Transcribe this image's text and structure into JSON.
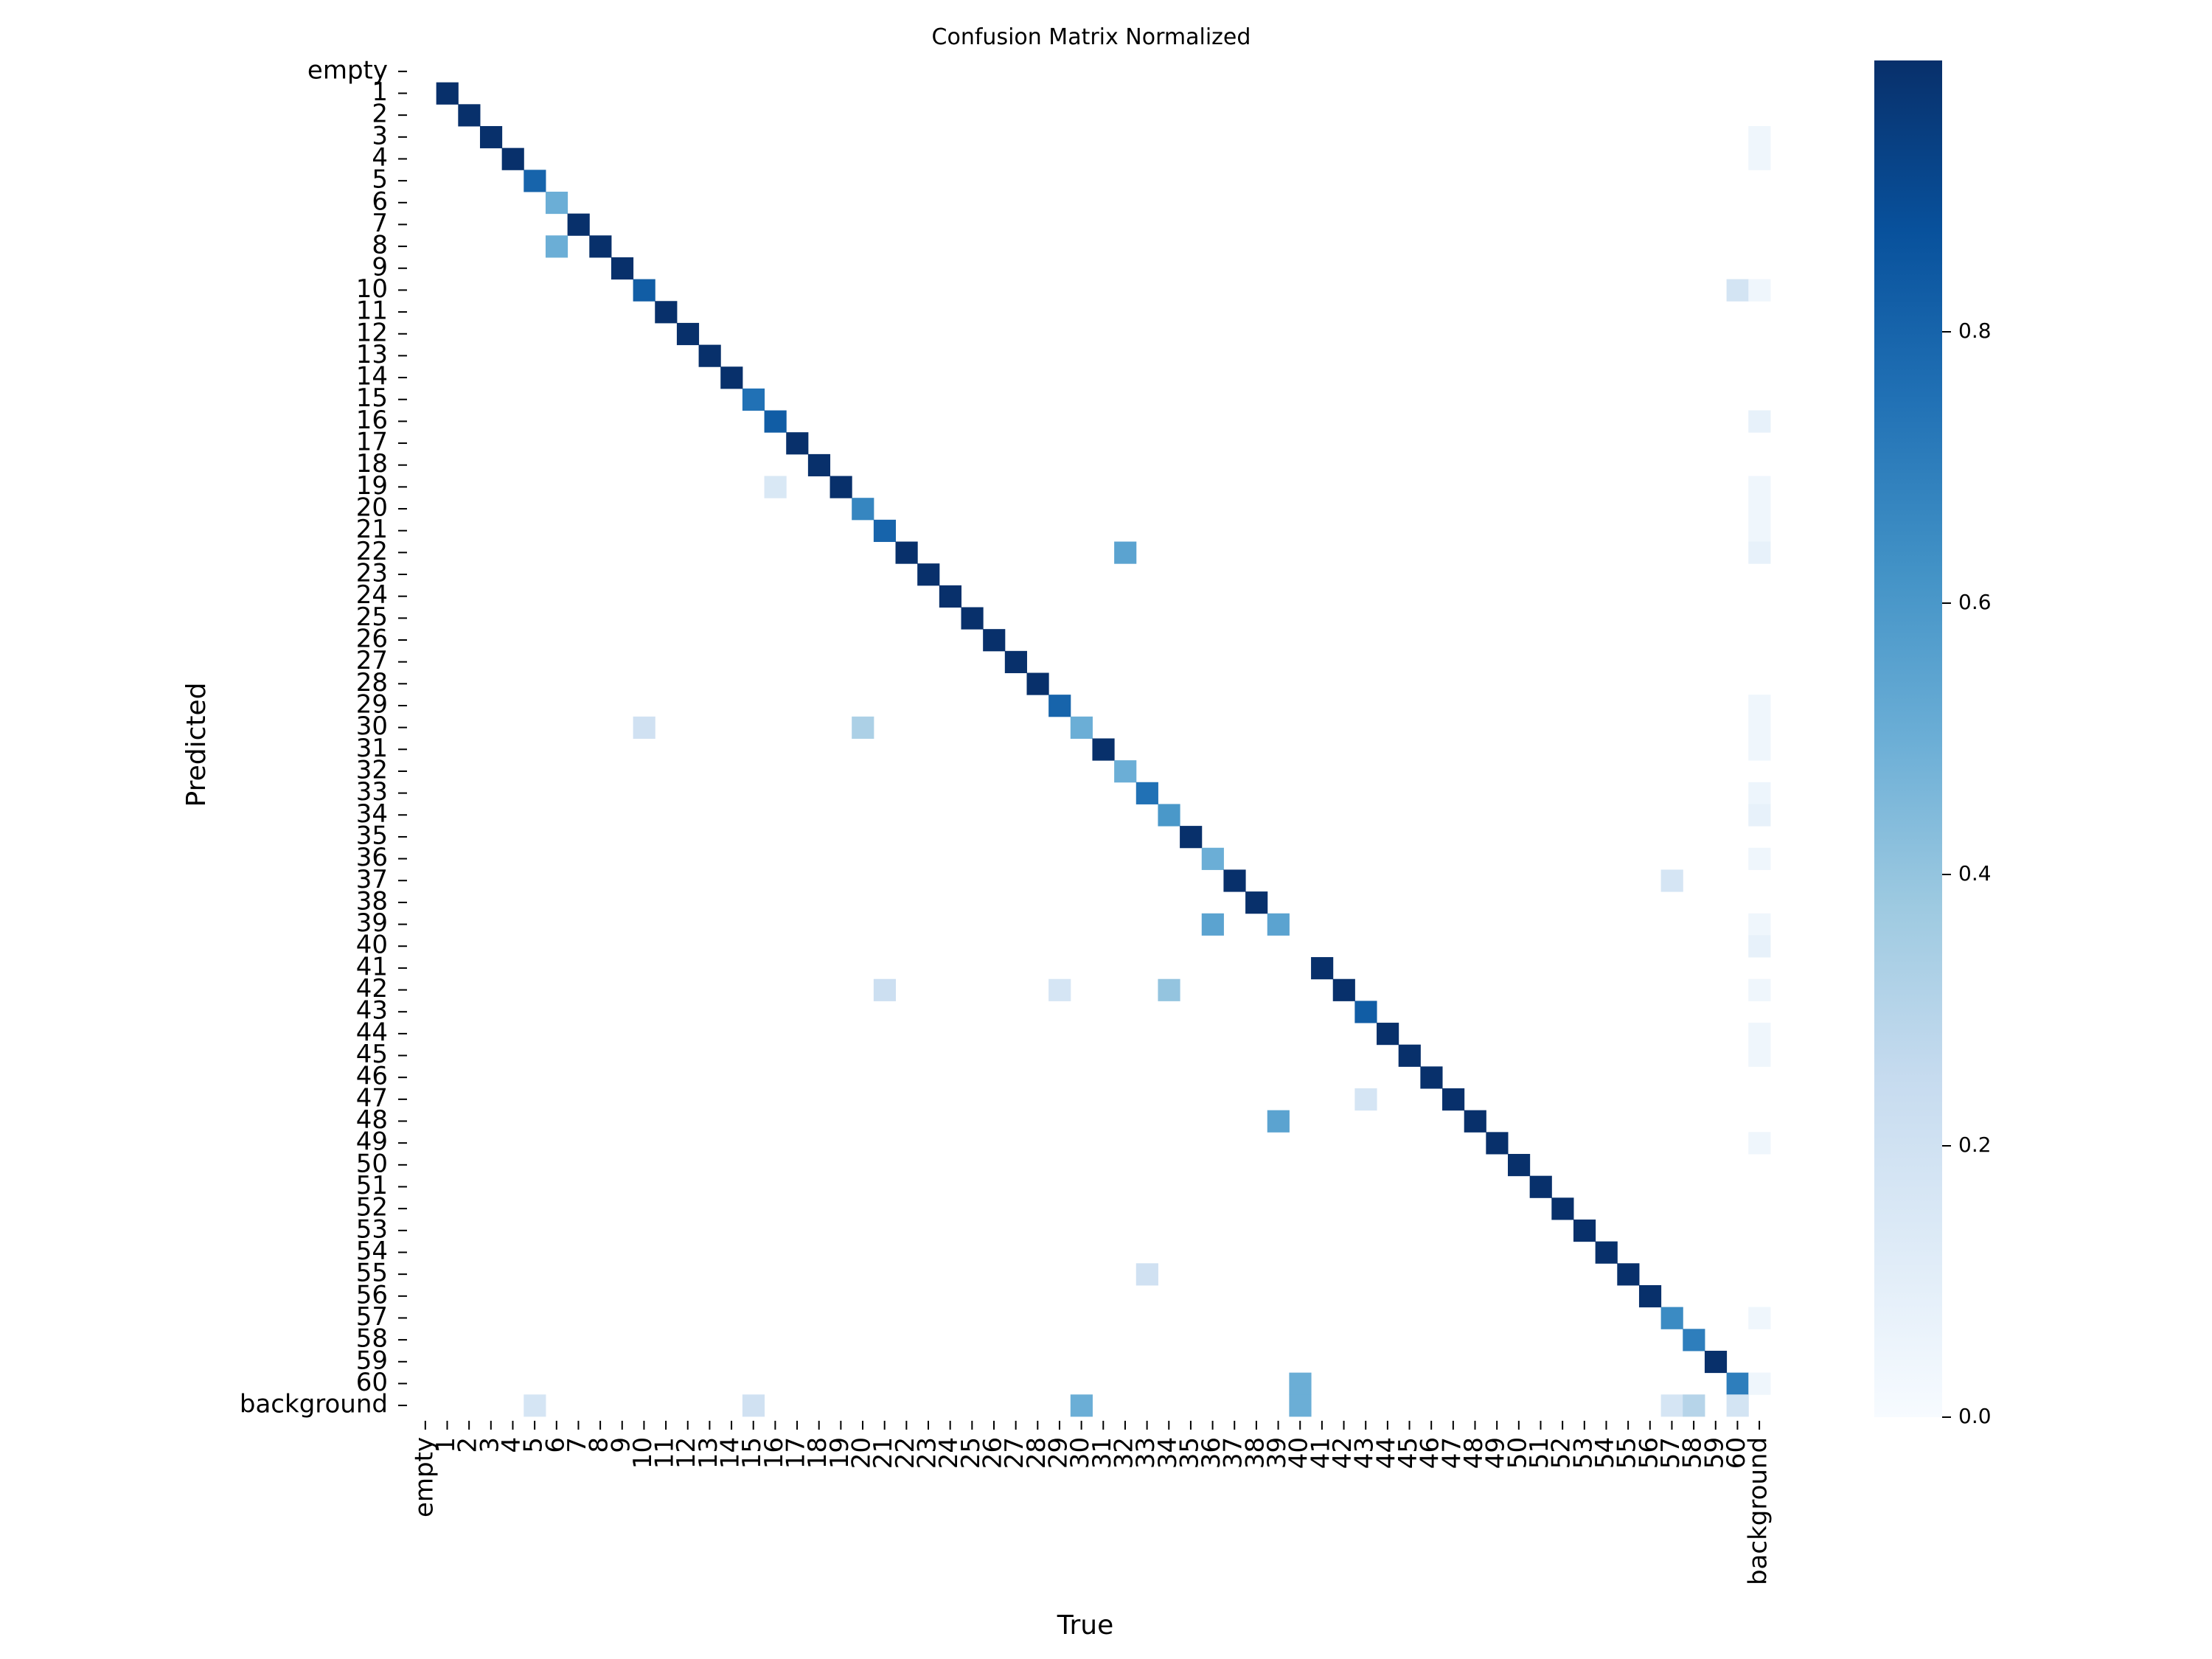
{
  "chart_data": {
    "type": "heatmap",
    "title": "Confusion Matrix Normalized",
    "xlabel": "True",
    "ylabel": "Predicted",
    "labels": [
      "empty",
      "1",
      "2",
      "3",
      "4",
      "5",
      "6",
      "7",
      "8",
      "9",
      "10",
      "11",
      "12",
      "13",
      "14",
      "15",
      "16",
      "17",
      "18",
      "19",
      "20",
      "21",
      "22",
      "23",
      "24",
      "25",
      "26",
      "27",
      "28",
      "29",
      "30",
      "31",
      "32",
      "33",
      "34",
      "35",
      "36",
      "37",
      "38",
      "39",
      "40",
      "41",
      "42",
      "43",
      "44",
      "45",
      "46",
      "47",
      "48",
      "49",
      "50",
      "51",
      "52",
      "53",
      "54",
      "55",
      "56",
      "57",
      "58",
      "59",
      "60",
      "background"
    ],
    "colormap": "Blues",
    "colorbar": {
      "min": 0.0,
      "max": 1.0,
      "ticks": [
        0.0,
        0.2,
        0.4,
        0.6,
        0.8
      ],
      "tick_labels": [
        "0.0",
        "0.2",
        "0.4",
        "0.6",
        "0.8"
      ]
    },
    "cells": [
      {
        "pred": "1",
        "true": "1",
        "value": 1.0
      },
      {
        "pred": "2",
        "true": "2",
        "value": 1.0
      },
      {
        "pred": "3",
        "true": "3",
        "value": 1.0
      },
      {
        "pred": "3",
        "true": "background",
        "value": 0.04
      },
      {
        "pred": "4",
        "true": "4",
        "value": 1.0
      },
      {
        "pred": "4",
        "true": "background",
        "value": 0.04
      },
      {
        "pred": "5",
        "true": "5",
        "value": 0.8
      },
      {
        "pred": "6",
        "true": "6",
        "value": 0.5
      },
      {
        "pred": "7",
        "true": "7",
        "value": 1.0
      },
      {
        "pred": "8",
        "true": "6",
        "value": 0.5
      },
      {
        "pred": "8",
        "true": "8",
        "value": 1.0
      },
      {
        "pred": "9",
        "true": "9",
        "value": 1.0
      },
      {
        "pred": "10",
        "true": "10",
        "value": 0.83
      },
      {
        "pred": "10",
        "true": "60",
        "value": 0.18
      },
      {
        "pred": "10",
        "true": "background",
        "value": 0.04
      },
      {
        "pred": "11",
        "true": "11",
        "value": 1.0
      },
      {
        "pred": "12",
        "true": "12",
        "value": 1.0
      },
      {
        "pred": "13",
        "true": "13",
        "value": 1.0
      },
      {
        "pred": "14",
        "true": "14",
        "value": 1.0
      },
      {
        "pred": "15",
        "true": "15",
        "value": 0.75
      },
      {
        "pred": "16",
        "true": "16",
        "value": 0.83
      },
      {
        "pred": "16",
        "true": "background",
        "value": 0.08
      },
      {
        "pred": "17",
        "true": "17",
        "value": 1.0
      },
      {
        "pred": "18",
        "true": "18",
        "value": 1.0
      },
      {
        "pred": "19",
        "true": "16",
        "value": 0.15
      },
      {
        "pred": "19",
        "true": "19",
        "value": 1.0
      },
      {
        "pred": "19",
        "true": "background",
        "value": 0.04
      },
      {
        "pred": "20",
        "true": "20",
        "value": 0.67
      },
      {
        "pred": "20",
        "true": "background",
        "value": 0.04
      },
      {
        "pred": "21",
        "true": "21",
        "value": 0.8
      },
      {
        "pred": "21",
        "true": "background",
        "value": 0.04
      },
      {
        "pred": "22",
        "true": "22",
        "value": 1.0
      },
      {
        "pred": "22",
        "true": "32",
        "value": 0.55
      },
      {
        "pred": "22",
        "true": "background",
        "value": 0.08
      },
      {
        "pred": "23",
        "true": "23",
        "value": 1.0
      },
      {
        "pred": "24",
        "true": "24",
        "value": 1.0
      },
      {
        "pred": "25",
        "true": "25",
        "value": 1.0
      },
      {
        "pred": "26",
        "true": "26",
        "value": 1.0
      },
      {
        "pred": "27",
        "true": "27",
        "value": 1.0
      },
      {
        "pred": "28",
        "true": "28",
        "value": 1.0
      },
      {
        "pred": "29",
        "true": "29",
        "value": 0.8
      },
      {
        "pred": "29",
        "true": "background",
        "value": 0.04
      },
      {
        "pred": "30",
        "true": "10",
        "value": 0.2
      },
      {
        "pred": "30",
        "true": "20",
        "value": 0.33
      },
      {
        "pred": "30",
        "true": "30",
        "value": 0.5
      },
      {
        "pred": "30",
        "true": "background",
        "value": 0.04
      },
      {
        "pred": "31",
        "true": "31",
        "value": 1.0
      },
      {
        "pred": "31",
        "true": "background",
        "value": 0.04
      },
      {
        "pred": "32",
        "true": "32",
        "value": 0.5
      },
      {
        "pred": "33",
        "true": "33",
        "value": 0.75
      },
      {
        "pred": "33",
        "true": "background",
        "value": 0.05
      },
      {
        "pred": "34",
        "true": "34",
        "value": 0.6
      },
      {
        "pred": "34",
        "true": "background",
        "value": 0.08
      },
      {
        "pred": "35",
        "true": "35",
        "value": 1.0
      },
      {
        "pred": "36",
        "true": "36",
        "value": 0.5
      },
      {
        "pred": "36",
        "true": "background",
        "value": 0.04
      },
      {
        "pred": "37",
        "true": "37",
        "value": 1.0
      },
      {
        "pred": "37",
        "true": "57",
        "value": 0.17
      },
      {
        "pred": "38",
        "true": "38",
        "value": 1.0
      },
      {
        "pred": "39",
        "true": "36",
        "value": 0.55
      },
      {
        "pred": "39",
        "true": "39",
        "value": 0.55
      },
      {
        "pred": "39",
        "true": "background",
        "value": 0.04
      },
      {
        "pred": "40",
        "true": "background",
        "value": 0.08
      },
      {
        "pred": "41",
        "true": "41",
        "value": 1.0
      },
      {
        "pred": "42",
        "true": "21",
        "value": 0.22
      },
      {
        "pred": "42",
        "true": "29",
        "value": 0.17
      },
      {
        "pred": "42",
        "true": "34",
        "value": 0.4
      },
      {
        "pred": "42",
        "true": "42",
        "value": 1.0
      },
      {
        "pred": "42",
        "true": "background",
        "value": 0.04
      },
      {
        "pred": "43",
        "true": "43",
        "value": 0.83
      },
      {
        "pred": "44",
        "true": "44",
        "value": 1.0
      },
      {
        "pred": "44",
        "true": "background",
        "value": 0.04
      },
      {
        "pred": "45",
        "true": "45",
        "value": 1.0
      },
      {
        "pred": "45",
        "true": "background",
        "value": 0.04
      },
      {
        "pred": "46",
        "true": "46",
        "value": 1.0
      },
      {
        "pred": "47",
        "true": "43",
        "value": 0.17
      },
      {
        "pred": "47",
        "true": "47",
        "value": 1.0
      },
      {
        "pred": "48",
        "true": "39",
        "value": 0.55
      },
      {
        "pred": "48",
        "true": "48",
        "value": 1.0
      },
      {
        "pred": "49",
        "true": "49",
        "value": 1.0
      },
      {
        "pred": "49",
        "true": "background",
        "value": 0.04
      },
      {
        "pred": "50",
        "true": "50",
        "value": 1.0
      },
      {
        "pred": "51",
        "true": "51",
        "value": 1.0
      },
      {
        "pred": "52",
        "true": "52",
        "value": 1.0
      },
      {
        "pred": "53",
        "true": "53",
        "value": 1.0
      },
      {
        "pred": "54",
        "true": "54",
        "value": 1.0
      },
      {
        "pred": "55",
        "true": "33",
        "value": 0.2
      },
      {
        "pred": "55",
        "true": "55",
        "value": 1.0
      },
      {
        "pred": "56",
        "true": "56",
        "value": 1.0
      },
      {
        "pred": "57",
        "true": "57",
        "value": 0.65
      },
      {
        "pred": "57",
        "true": "background",
        "value": 0.04
      },
      {
        "pred": "58",
        "true": "58",
        "value": 0.7
      },
      {
        "pred": "59",
        "true": "59",
        "value": 1.0
      },
      {
        "pred": "60",
        "true": "40",
        "value": 0.5
      },
      {
        "pred": "60",
        "true": "60",
        "value": 0.7
      },
      {
        "pred": "60",
        "true": "background",
        "value": 0.04
      },
      {
        "pred": "background",
        "true": "5",
        "value": 0.17
      },
      {
        "pred": "background",
        "true": "15",
        "value": 0.2
      },
      {
        "pred": "background",
        "true": "30",
        "value": 0.5
      },
      {
        "pred": "background",
        "true": "40",
        "value": 0.5
      },
      {
        "pred": "background",
        "true": "57",
        "value": 0.17
      },
      {
        "pred": "background",
        "true": "58",
        "value": 0.3
      },
      {
        "pred": "background",
        "true": "60",
        "value": 0.18
      }
    ]
  }
}
